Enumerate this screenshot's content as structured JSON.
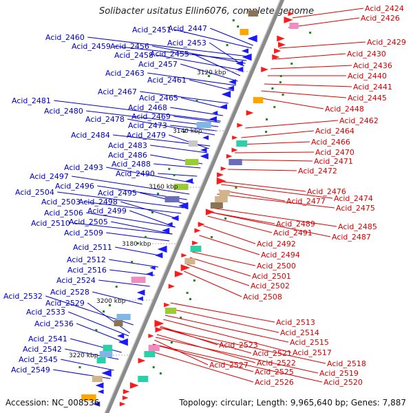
{
  "title": "Solibacter usitatus Ellin6076, complete genome",
  "accession_text": "Accession: NC_008536",
  "topology_text": "Topology: circular; Length: 9,965,640 bp; Genes: 7,887",
  "colors": {
    "left_label": "#0000cc",
    "right_label": "#dd0000",
    "backbone": "#8a8a8a"
  },
  "kbp_ticks": [
    "3120 kbp",
    "3140 kbp",
    "3160 kbp",
    "3180 kbp",
    "3200 kbp",
    "3220 kbp"
  ],
  "left_labels": [
    "Acid_2460",
    "Acid_2459",
    "Acid_2456",
    "Acid_2451",
    "Acid_2447",
    "Acid_2453",
    "Acid_2458",
    "Acid_2455",
    "Acid_2457",
    "Acid_2463",
    "Acid_2461",
    "Acid_2467",
    "Acid_2465",
    "Acid_2481",
    "Acid_2468",
    "Acid_2480",
    "Acid_2469",
    "Acid_2478",
    "Acid_2473",
    "Acid_2484",
    "Acid_2479",
    "Acid_2483",
    "Acid_2486",
    "Acid_2488",
    "Acid_2493",
    "Acid_2490",
    "Acid_2497",
    "Acid_2496",
    "Acid_2504",
    "Acid_2495",
    "Acid_2503",
    "Acid_2498",
    "Acid_2506",
    "Acid_2499",
    "Acid_2510",
    "Acid_2505",
    "Acid_2509",
    "Acid_2511",
    "Acid_2512",
    "Acid_2516",
    "Acid_2524",
    "Acid_2528",
    "Acid_2532",
    "Acid_2529",
    "Acid_2533",
    "Acid_2536",
    "Acid_2541",
    "Acid_2542",
    "Acid_2545",
    "Acid_2549"
  ],
  "right_labels": [
    "Acid_2424",
    "Acid_2426",
    "Acid_2429",
    "Acid_2430",
    "Acid_2436",
    "Acid_2440",
    "Acid_2441",
    "Acid_2445",
    "Acid_2448",
    "Acid_2462",
    "Acid_2464",
    "Acid_2466",
    "Acid_2470",
    "Acid_2471",
    "Acid_2472",
    "Acid_2476",
    "Acid_2474",
    "Acid_2477",
    "Acid_2475",
    "Acid_2485",
    "Acid_2489",
    "Acid_2487",
    "Acid_2491",
    "Acid_2492",
    "Acid_2494",
    "Acid_2500",
    "Acid_2501",
    "Acid_2502",
    "Acid_2508",
    "Acid_2513",
    "Acid_2514",
    "Acid_2515",
    "Acid_2517",
    "Acid_2523",
    "Acid_2521",
    "Acid_2518",
    "Acid_2522",
    "Acid_2519",
    "Acid_2527",
    "Acid_2525",
    "Acid_2520",
    "Acid_2526"
  ]
}
